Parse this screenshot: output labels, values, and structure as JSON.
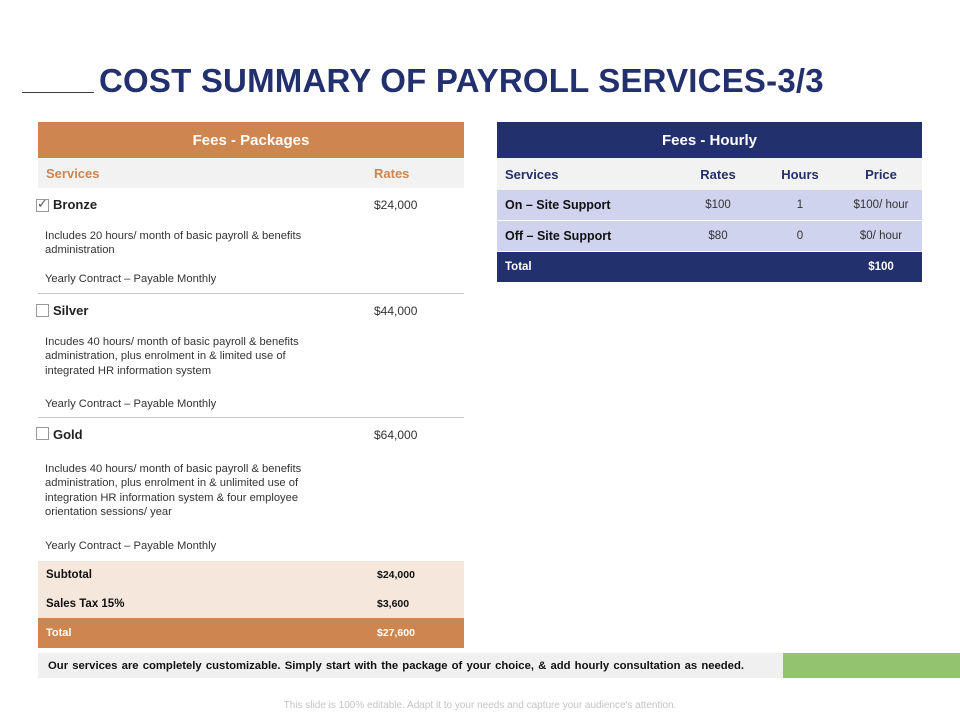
{
  "title": "COST SUMMARY OF PAYROLL SERVICES-3/3",
  "packages": {
    "header": "Fees - Packages",
    "col_services": "Services",
    "col_rates": "Rates",
    "tiers": [
      {
        "name": "Bronze",
        "price": "$24,000",
        "checked": true,
        "description": "Includes 20 hours/ month of basic payroll & benefits administration",
        "contract": "Yearly Contract – Payable Monthly"
      },
      {
        "name": "Silver",
        "price": "$44,000",
        "checked": false,
        "description": "Incudes 40 hours/ month of basic payroll & benefits administration, plus enrolment in & limited use of integrated HR information system",
        "contract": "Yearly Contract – Payable Monthly"
      },
      {
        "name": "Gold",
        "price": "$64,000",
        "checked": false,
        "description": "Includes 40 hours/ month of basic payroll & benefits administration, plus enrolment in & unlimited use of integration HR information system & four employee orientation sessions/ year",
        "contract": "Yearly Contract – Payable Monthly"
      }
    ],
    "subtotal_label": "Subtotal",
    "subtotal_value": "$24,000",
    "tax_label": "Sales Tax 15%",
    "tax_value": "$3,600",
    "total_label": "Total",
    "total_value": "$27,600"
  },
  "hourly": {
    "header": "Fees - Hourly",
    "columns": [
      "Services",
      "Rates",
      "Hours",
      "Price"
    ],
    "rows": [
      {
        "service": "On – Site Support",
        "rate": "$100",
        "hours": "1",
        "price": "$100/ hour"
      },
      {
        "service": "Off – Site Support",
        "rate": "$80",
        "hours": "0",
        "price": "$0/ hour"
      }
    ],
    "total_label": "Total",
    "total_value": "$100"
  },
  "banner_text": "Our services are completely customizable. Simply start with the package of your choice, & add hourly consultation as needed.",
  "footer_text": "This slide is 100% editable. Adapt it to your needs and capture your audience's attention.",
  "colors": {
    "title_navy": "#23306e",
    "packages_orange": "#cd8650",
    "hourly_row_lavender": "#cfd3ee",
    "subtotal_peach": "#f6e7dc",
    "accent_green": "#93c36e"
  }
}
